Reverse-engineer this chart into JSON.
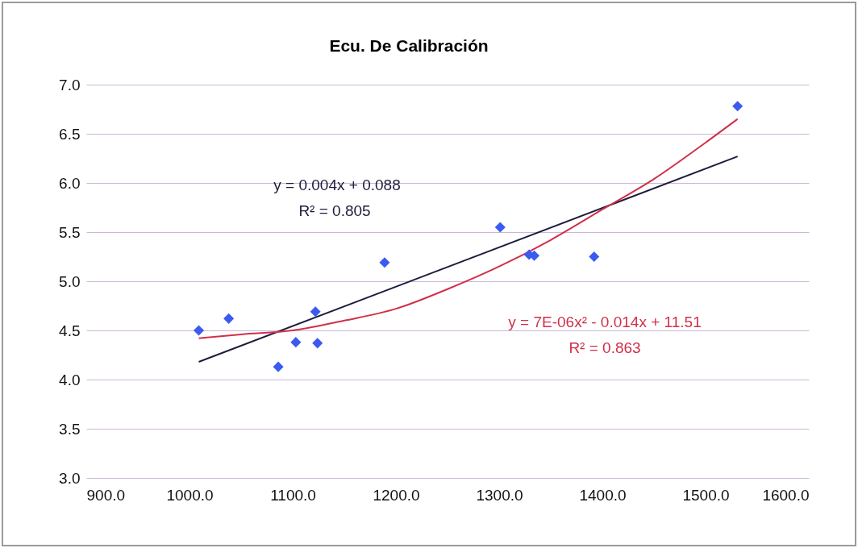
{
  "chart_data": {
    "type": "scatter",
    "title": "Ecu. De Calibración",
    "xlim": [
      900,
      1600
    ],
    "ylim": [
      3,
      7
    ],
    "xticks": [
      {
        "value": 900,
        "label": "900.0"
      },
      {
        "value": 1000,
        "label": "1000.0"
      },
      {
        "value": 1100,
        "label": "1100.0"
      },
      {
        "value": 1200,
        "label": "1200.0"
      },
      {
        "value": 1300,
        "label": "1300.0"
      },
      {
        "value": 1400,
        "label": "1400.0"
      },
      {
        "value": 1500,
        "label": "1500.0"
      },
      {
        "value": 1600,
        "label": "1600.0"
      }
    ],
    "yticks": [
      {
        "value": 3,
        "label": "3.0"
      },
      {
        "value": 3.5,
        "label": "3.5"
      },
      {
        "value": 4,
        "label": "4.0"
      },
      {
        "value": 4.5,
        "label": "4.5"
      },
      {
        "value": 5,
        "label": "5.0"
      },
      {
        "value": 5.5,
        "label": "5.5"
      },
      {
        "value": 6,
        "label": "6.0"
      },
      {
        "value": 6.5,
        "label": "6.5"
      },
      {
        "value": 7,
        "label": "7.0"
      }
    ],
    "grid": "y",
    "marker": "diamond",
    "series": [
      {
        "color": "#3b5bf0",
        "x": [
          1009,
          1038,
          1086,
          1103,
          1122,
          1124,
          1189,
          1301,
          1329,
          1334,
          1392,
          1531
        ],
        "values": [
          4.5,
          4.62,
          4.13,
          4.38,
          4.69,
          4.37,
          5.19,
          5.55,
          5.27,
          5.26,
          5.25,
          6.78
        ]
      },
      {
        "type": "line",
        "marker": "none",
        "color": "#1c1c3c",
        "x": [
          1009,
          1531
        ],
        "values": [
          4.18,
          6.27
        ]
      },
      {
        "type": "line",
        "marker": "none",
        "color": "#d0304a",
        "x": [
          1009,
          1050,
          1100,
          1150,
          1200,
          1250,
          1300,
          1350,
          1400,
          1450,
          1500,
          1531
        ],
        "values": [
          4.42,
          4.46,
          4.5,
          4.6,
          4.72,
          4.92,
          5.15,
          5.42,
          5.73,
          6.04,
          6.41,
          6.65
        ]
      }
    ],
    "annotations": [
      "y = 0.004x + 0.088",
      "R² = 0.805",
      "y = 7E-06x² - 0.014x + 11.51",
      "R² = 0.863"
    ]
  }
}
